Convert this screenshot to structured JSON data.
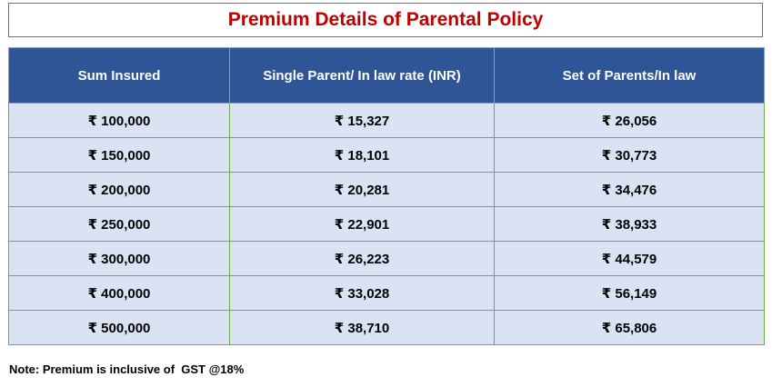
{
  "title": "Premium Details of Parental Policy",
  "table": {
    "headers": [
      "Sum Insured",
      "Single Parent/ In law rate (INR)",
      "Set of Parents/In law"
    ],
    "rows": [
      [
        "₹ 100,000",
        "₹ 15,327",
        "₹ 26,056"
      ],
      [
        "₹ 150,000",
        "₹ 18,101",
        "₹ 30,773"
      ],
      [
        "₹ 200,000",
        "₹ 20,281",
        "₹ 34,476"
      ],
      [
        "₹ 250,000",
        "₹ 22,901",
        "₹ 38,933"
      ],
      [
        "₹ 300,000",
        "₹ 26,223",
        "₹ 44,579"
      ],
      [
        "₹ 400,000",
        "₹ 33,028",
        "₹ 56,149"
      ],
      [
        "₹ 500,000",
        "₹ 38,710",
        "₹ 65,806"
      ]
    ]
  },
  "note": "Note: Premium is inclusive of  GST @18%",
  "colors": {
    "title": "#c00000",
    "header_bg": "#2f5597",
    "header_text": "#ffffff",
    "row_bg": "#dae3f3",
    "row_border": "#70ad47"
  }
}
